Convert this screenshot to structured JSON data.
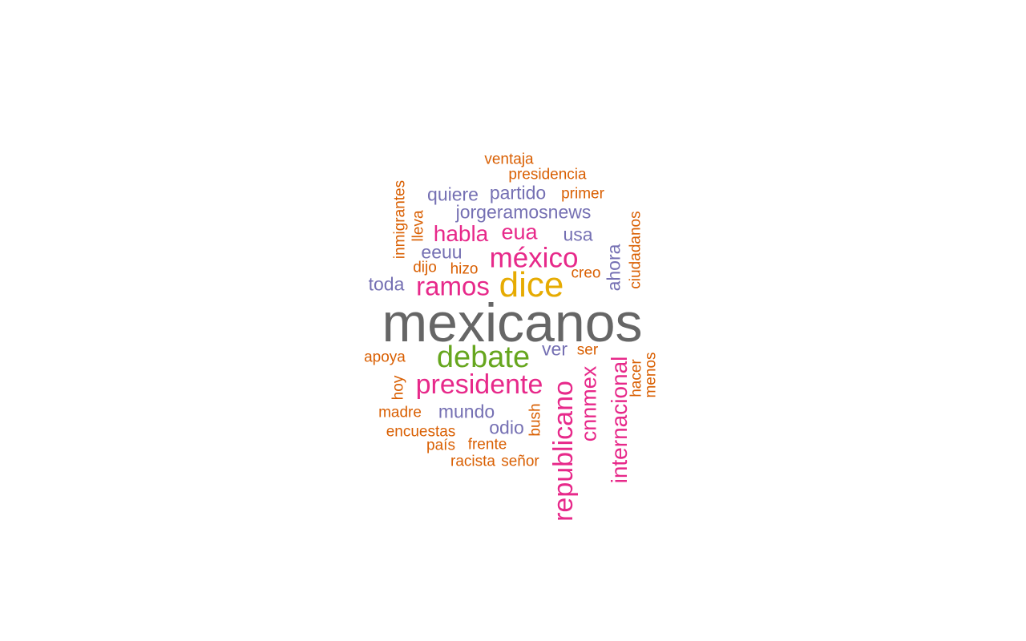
{
  "words": [
    {
      "text": "mexicanos",
      "color": "#666666"
    },
    {
      "text": "dice",
      "color": "#e6ab02"
    },
    {
      "text": "debate",
      "color": "#66a61e"
    },
    {
      "text": "méxico",
      "color": "#e7298a"
    },
    {
      "text": "ramos",
      "color": "#e7298a"
    },
    {
      "text": "presidente",
      "color": "#e7298a"
    },
    {
      "text": "republicano",
      "color": "#e7298a"
    },
    {
      "text": "internacional",
      "color": "#e7298a"
    },
    {
      "text": "cnnmex",
      "color": "#e7298a"
    },
    {
      "text": "habla",
      "color": "#e7298a"
    },
    {
      "text": "eua",
      "color": "#e7298a"
    },
    {
      "text": "jorgeramosnews",
      "color": "#7570b3"
    },
    {
      "text": "partido",
      "color": "#7570b3"
    },
    {
      "text": "quiere",
      "color": "#7570b3"
    },
    {
      "text": "eeuu",
      "color": "#7570b3"
    },
    {
      "text": "usa",
      "color": "#7570b3"
    },
    {
      "text": "toda",
      "color": "#7570b3"
    },
    {
      "text": "ahora",
      "color": "#7570b3"
    },
    {
      "text": "ver",
      "color": "#7570b3"
    },
    {
      "text": "mundo",
      "color": "#7570b3"
    },
    {
      "text": "odio",
      "color": "#7570b3"
    },
    {
      "text": "ventaja",
      "color": "#d95f02"
    },
    {
      "text": "presidencia",
      "color": "#d95f02"
    },
    {
      "text": "primer",
      "color": "#d95f02"
    },
    {
      "text": "inmigrantes",
      "color": "#d95f02"
    },
    {
      "text": "lleva",
      "color": "#d95f02"
    },
    {
      "text": "ciudadanos",
      "color": "#d95f02"
    },
    {
      "text": "dijo",
      "color": "#d95f02"
    },
    {
      "text": "hizo",
      "color": "#d95f02"
    },
    {
      "text": "creo",
      "color": "#d95f02"
    },
    {
      "text": "apoya",
      "color": "#d95f02"
    },
    {
      "text": "ser",
      "color": "#d95f02"
    },
    {
      "text": "hacer",
      "color": "#d95f02"
    },
    {
      "text": "menos",
      "color": "#d95f02"
    },
    {
      "text": "hoy",
      "color": "#d95f02"
    },
    {
      "text": "madre",
      "color": "#d95f02"
    },
    {
      "text": "bush",
      "color": "#d95f02"
    },
    {
      "text": "encuestas",
      "color": "#d95f02"
    },
    {
      "text": "país",
      "color": "#d95f02"
    },
    {
      "text": "frente",
      "color": "#d95f02"
    },
    {
      "text": "racista",
      "color": "#d95f02"
    },
    {
      "text": "señor",
      "color": "#d95f02"
    }
  ]
}
